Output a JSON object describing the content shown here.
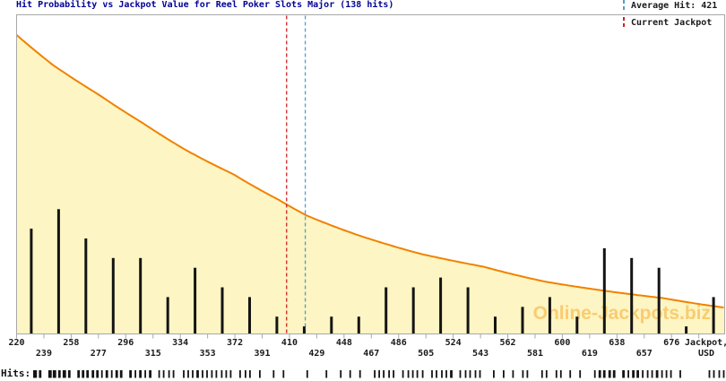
{
  "title": "Hit Probability vs Jackpot Value for Reel Poker Slots Major (138 hits)",
  "legend": {
    "average_hit_label": "Average Hit: 421",
    "current_jackpot_label": "Current Jackpot"
  },
  "axis": {
    "row1": [
      "220",
      "258",
      "296",
      "334",
      "372",
      "410",
      "448",
      "486",
      "524",
      "562",
      "600",
      "638",
      "676"
    ],
    "row2": [
      "239",
      "277",
      "315",
      "353",
      "391",
      "429",
      "467",
      "505",
      "543",
      "581",
      "619",
      "657"
    ],
    "unit_line1": "Jackpot,",
    "unit_line2": "USD"
  },
  "hits_label": "Hits:",
  "watermark": "Online-Jackpots.biz",
  "colors": {
    "title": "#000099",
    "text": "#1a1a1a",
    "border": "#a8a8a8",
    "tick": "#a8a8a8",
    "curve": "#f08200",
    "fill": "#fdf5c3",
    "bar": "#141414",
    "average_hit": "#4d9fcb",
    "current_jackpot": "#cc2222",
    "watermark": "rgba(242,148,0,0.42)"
  },
  "chart_data": {
    "type": "bar",
    "title": "Hit Probability vs Jackpot Value for Reel Poker Slots Major (138 hits)",
    "xlabel": "Jackpot, USD",
    "ylabel": "",
    "total_hits": 138,
    "average_hit": 421,
    "current_jackpot": 408,
    "x_range": [
      220,
      713
    ],
    "grid": false,
    "legend_position": "top-right",
    "histogram": {
      "bin_width": 19,
      "first_bin_center": 229.5,
      "counts": [
        11,
        13,
        10,
        8,
        8,
        4,
        7,
        5,
        4,
        2,
        1,
        2,
        2,
        5,
        5,
        6,
        5,
        2,
        3,
        4,
        2,
        9,
        8,
        7,
        1,
        4
      ]
    },
    "curve": {
      "name": "hit probability (relative)",
      "points": [
        [
          220,
          1.0
        ],
        [
          246,
          0.897
        ],
        [
          277,
          0.801
        ],
        [
          308,
          0.705
        ],
        [
          339,
          0.612
        ],
        [
          371,
          0.534
        ],
        [
          402,
          0.45
        ],
        [
          422,
          0.396
        ],
        [
          458,
          0.33
        ],
        [
          502,
          0.267
        ],
        [
          545,
          0.225
        ],
        [
          589,
          0.174
        ],
        [
          630,
          0.144
        ],
        [
          670,
          0.12
        ],
        [
          713,
          0.088
        ]
      ]
    },
    "x_ticks_row1": [
      220,
      258,
      296,
      334,
      372,
      410,
      448,
      486,
      524,
      562,
      600,
      638,
      676
    ],
    "x_ticks_row2": [
      239,
      277,
      315,
      353,
      391,
      429,
      467,
      505,
      543,
      581,
      619,
      657
    ]
  }
}
